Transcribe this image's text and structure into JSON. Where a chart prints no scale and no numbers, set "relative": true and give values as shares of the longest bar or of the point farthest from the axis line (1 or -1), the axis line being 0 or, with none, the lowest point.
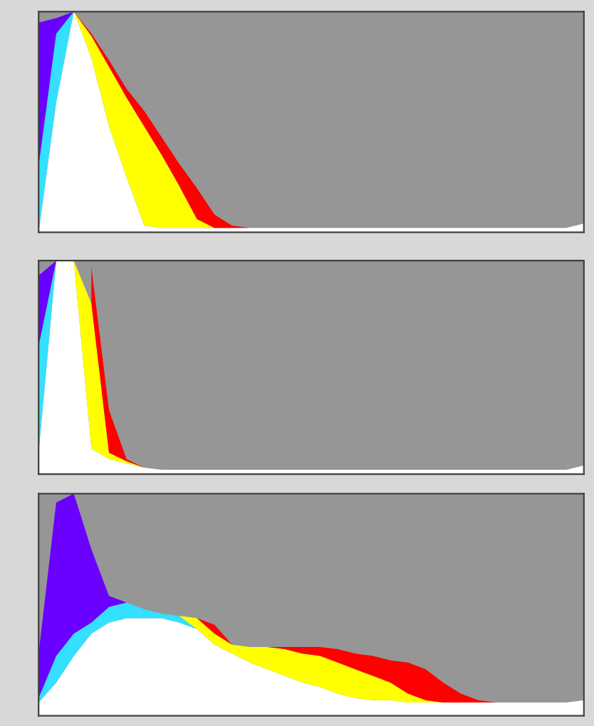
{
  "chart_data": [
    {
      "type": "area",
      "relative": true,
      "stacked": true,
      "grid": false,
      "legend": false,
      "categories": [
        null,
        null,
        null,
        null,
        null,
        null,
        null,
        null,
        null,
        null,
        null,
        null,
        null,
        null,
        null,
        null,
        null,
        null,
        null,
        null,
        null,
        null,
        null,
        null,
        null,
        null,
        null,
        null,
        null,
        null,
        null,
        null
      ],
      "series": [
        {
          "color": "#ffffff",
          "values": [
            0,
            0.59,
            1.0,
            0.79,
            0.48,
            0.25,
            0.03,
            0.02,
            0.02,
            0.02,
            0.02,
            0.02,
            0.02,
            0.02,
            0.02,
            0.02,
            0.02,
            0.02,
            0.02,
            0.02,
            0.02,
            0.02,
            0.02,
            0.02,
            0.02,
            0.02,
            0.02,
            0.02,
            0.02,
            0.02,
            0.02,
            0.04
          ]
        },
        {
          "color": "#33e0ff",
          "values": [
            0.3,
            0.31,
            0,
            null,
            null,
            null,
            null,
            null,
            null,
            null,
            null,
            null,
            null,
            null,
            null,
            null,
            null,
            null,
            null,
            null,
            null,
            null,
            null,
            null,
            null,
            null,
            null,
            null,
            null,
            null,
            null,
            null
          ]
        },
        {
          "color": "#6a00ff",
          "values": [
            0.65,
            0.07,
            0,
            null,
            null,
            null,
            null,
            null,
            null,
            null,
            null,
            null,
            null,
            null,
            null,
            null,
            null,
            null,
            null,
            null,
            null,
            null,
            null,
            null,
            null,
            null,
            null,
            null,
            null,
            null,
            null,
            null
          ]
        },
        {
          "color": "#ffff00",
          "values": [
            null,
            null,
            0,
            0.1,
            0.27,
            0.36,
            0.45,
            0.33,
            0.19,
            0.04,
            0,
            null,
            null,
            null,
            null,
            null,
            null,
            null,
            null,
            null,
            null,
            null,
            null,
            null,
            null,
            null,
            null,
            null,
            null,
            null,
            null,
            null
          ]
        },
        {
          "color": "#ff0000",
          "values": [
            null,
            null,
            0,
            0.01,
            0.03,
            0.04,
            0.07,
            0.08,
            0.1,
            0.14,
            0.06,
            0.01,
            0,
            null,
            null,
            null,
            null,
            null,
            null,
            null,
            null,
            null,
            null,
            null,
            null,
            null,
            null,
            null,
            null,
            null,
            null,
            null
          ]
        }
      ]
    },
    {
      "type": "area",
      "relative": true,
      "stacked": true,
      "grid": false,
      "legend": false,
      "categories": [
        null,
        null,
        null,
        null,
        null,
        null,
        null,
        null,
        null,
        null,
        null,
        null,
        null,
        null,
        null,
        null,
        null,
        null,
        null,
        null,
        null,
        null,
        null,
        null,
        null,
        null,
        null,
        null,
        null,
        null,
        null,
        null
      ],
      "series": [
        {
          "color": "#ffffff",
          "values": [
            0.1,
            1.0,
            1.0,
            0.12,
            0.07,
            0.05,
            0.03,
            0.02,
            0.02,
            0.02,
            0.02,
            0.02,
            0.02,
            0.02,
            0.02,
            0.02,
            0.02,
            0.02,
            0.02,
            0.02,
            0.02,
            0.02,
            0.02,
            0.02,
            0.02,
            0.02,
            0.02,
            0.02,
            0.02,
            0.02,
            0.02,
            0.04
          ]
        },
        {
          "color": "#33e0ff",
          "values": [
            0.5,
            0,
            null,
            null,
            null,
            null,
            null,
            null,
            null,
            null,
            null,
            null,
            null,
            null,
            null,
            null,
            null,
            null,
            null,
            null,
            null,
            null,
            null,
            null,
            null,
            null,
            null,
            null,
            null,
            null,
            null,
            null
          ]
        },
        {
          "color": "#6a00ff",
          "values": [
            0.33,
            0,
            null,
            null,
            null,
            null,
            null,
            null,
            null,
            null,
            null,
            null,
            null,
            null,
            null,
            null,
            null,
            null,
            null,
            null,
            null,
            null,
            null,
            null,
            null,
            null,
            null,
            null,
            null,
            null,
            null,
            null
          ]
        },
        {
          "color": "#ffff00",
          "values": [
            null,
            null,
            0,
            0.68,
            0.03,
            0.01,
            0,
            null,
            null,
            null,
            null,
            null,
            null,
            null,
            null,
            null,
            null,
            null,
            null,
            null,
            null,
            null,
            null,
            null,
            null,
            null,
            null,
            null,
            null,
            null,
            null,
            null
          ]
        },
        {
          "color": "#ff0000",
          "values": [
            null,
            null,
            null,
            0.17,
            0.2,
            0.01,
            0,
            null,
            null,
            null,
            null,
            null,
            null,
            null,
            null,
            null,
            null,
            null,
            null,
            null,
            null,
            null,
            null,
            null,
            null,
            null,
            null,
            null,
            null,
            null,
            null,
            null
          ]
        }
      ]
    },
    {
      "type": "area",
      "relative": true,
      "stacked": true,
      "grid": false,
      "legend": false,
      "categories": [
        null,
        null,
        null,
        null,
        null,
        null,
        null,
        null,
        null,
        null,
        null,
        null,
        null,
        null,
        null,
        null,
        null,
        null,
        null,
        null,
        null,
        null,
        null,
        null,
        null,
        null,
        null,
        null,
        null,
        null,
        null,
        null
      ],
      "series": [
        {
          "color": "#ffffff",
          "values": [
            0.06,
            0.15,
            0.27,
            0.37,
            0.42,
            0.44,
            0.44,
            0.44,
            0.42,
            0.39,
            0.32,
            0.28,
            0.24,
            0.21,
            0.18,
            0.15,
            0.13,
            0.1,
            0.08,
            0.07,
            0.07,
            0.06,
            0.06,
            0.06,
            0.06,
            0.06,
            0.06,
            0.06,
            0.06,
            0.06,
            0.06,
            0.07
          ]
        },
        {
          "color": "#33e0ff",
          "values": [
            0.02,
            0.12,
            0.1,
            0.05,
            0.07,
            0.07,
            0.04,
            0.02,
            0.03,
            0,
            null,
            null,
            null,
            null,
            null,
            null,
            null,
            null,
            null,
            null,
            null,
            null,
            null,
            null,
            null,
            null,
            null,
            null,
            null,
            null,
            null,
            null
          ]
        },
        {
          "color": "#6a00ff",
          "values": [
            0.2,
            0.69,
            0.63,
            0.33,
            0.05,
            0,
            null,
            null,
            null,
            null,
            null,
            null,
            null,
            null,
            null,
            null,
            null,
            null,
            null,
            null,
            null,
            null,
            null,
            null,
            null,
            null,
            null,
            null,
            null,
            null,
            null,
            null
          ]
        },
        {
          "color": "#ffff00",
          "values": [
            null,
            null,
            null,
            null,
            null,
            null,
            null,
            null,
            0,
            0.05,
            0.05,
            0.04,
            0.07,
            0.1,
            0.12,
            0.13,
            0.14,
            0.14,
            0.13,
            0.11,
            0.08,
            0.04,
            0.01,
            0,
            null,
            null,
            null,
            null,
            null,
            null,
            null,
            null
          ]
        },
        {
          "color": "#ff0000",
          "values": [
            null,
            null,
            null,
            null,
            null,
            null,
            null,
            null,
            null,
            0,
            0.04,
            0,
            0,
            0,
            0.01,
            0.03,
            0.04,
            0.06,
            0.07,
            0.09,
            0.1,
            0.14,
            0.14,
            0.09,
            0.04,
            0.01,
            0,
            null,
            null,
            null,
            null,
            null
          ]
        }
      ]
    }
  ]
}
